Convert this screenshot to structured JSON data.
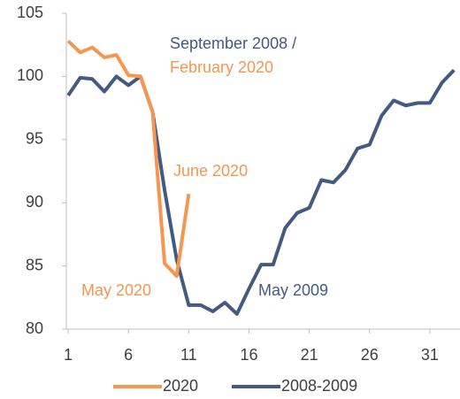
{
  "chart_data": {
    "type": "line",
    "x": [
      1,
      2,
      3,
      4,
      5,
      6,
      7,
      8,
      9,
      10,
      11,
      12,
      13,
      14,
      15,
      16,
      17,
      18,
      19,
      20,
      21,
      22,
      23,
      24,
      25,
      26,
      27,
      28,
      29,
      30,
      31,
      32,
      33
    ],
    "series": [
      {
        "name": "2020",
        "color": "#f7964f",
        "values": [
          102.8,
          101.9,
          102.3,
          101.5,
          101.7,
          100.1,
          100.0,
          97.2,
          85.2,
          84.2,
          90.7,
          null,
          null,
          null,
          null,
          null,
          null,
          null,
          null,
          null,
          null,
          null,
          null,
          null,
          null,
          null,
          null,
          null,
          null,
          null,
          null,
          null,
          null
        ]
      },
      {
        "name": "2008-2009",
        "color": "#435a82",
        "values": [
          98.5,
          99.9,
          99.8,
          98.8,
          100.0,
          99.3,
          100.0,
          97.2,
          91.0,
          85.5,
          81.9,
          81.9,
          81.4,
          82.1,
          81.2,
          83.2,
          85.1,
          85.1,
          88.0,
          89.2,
          89.6,
          91.8,
          91.6,
          92.6,
          94.3,
          94.6,
          96.9,
          98.1,
          97.7,
          97.9,
          97.9,
          99.5,
          100.5
        ]
      }
    ],
    "annotations": [
      {
        "text": "September 2008 /",
        "color": "#435a82"
      },
      {
        "text": "February 2020",
        "color": "#f7964f"
      },
      {
        "text": "June 2020",
        "color": "#f7964f"
      },
      {
        "text": "May 2020",
        "color": "#f7964f"
      },
      {
        "text": "May 2009",
        "color": "#435a82"
      }
    ],
    "xlim": [
      0.85,
      33.5
    ],
    "ylim": [
      80,
      105
    ],
    "xticks": [
      1,
      6,
      11,
      16,
      21,
      26,
      31
    ],
    "yticks": [
      80,
      85,
      90,
      95,
      100,
      105
    ],
    "grid": false,
    "legend": "bottom"
  }
}
